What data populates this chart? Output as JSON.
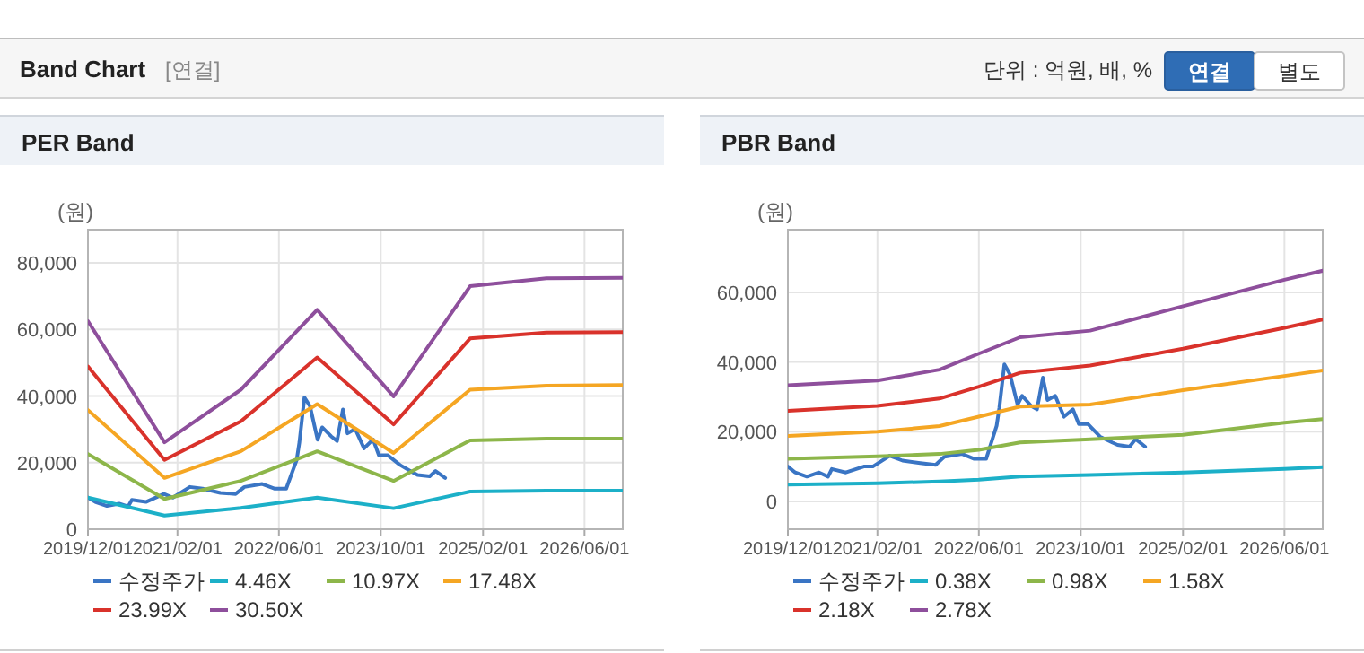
{
  "chart_data": [
    {
      "type": "other",
      "title": "Band Chart",
      "subtitle": "[연결]",
      "annotations": [
        "단위 : 억원, 배, %",
        "연결",
        "별도"
      ]
    },
    {
      "type": "line",
      "title": "PER Band",
      "ylabel": "(원)",
      "xlim": [
        "2019-12-01",
        "2026-12-01"
      ],
      "ylim": [
        0,
        90000
      ],
      "xticks": [
        {
          "value": "2019-12-01",
          "label": "2019/12/01"
        },
        {
          "value": "2021-02-01",
          "label": "2021/02/01"
        },
        {
          "value": "2022-06-01",
          "label": "2022/06/01"
        },
        {
          "value": "2023-10-01",
          "label": "2023/10/01"
        },
        {
          "value": "2025-02-01",
          "label": "2025/02/01"
        },
        {
          "value": "2026-06-01",
          "label": "2026/06/01"
        }
      ],
      "yticks": [
        0,
        {
          "value": 20000,
          "label": "20,000"
        },
        {
          "value": 40000,
          "label": "40,000"
        },
        {
          "value": 60000,
          "label": "60,000"
        },
        {
          "value": 80000,
          "label": "80,000"
        }
      ],
      "grid": true,
      "legend": "bottom",
      "line_style": "solid",
      "series": [
        {
          "name": "수정주가",
          "color": "#3a75c4",
          "x": [
            "2019-12-01",
            "2020-01-05",
            "2020-03-01",
            "2020-04-28",
            "2020-06-10",
            "2020-06-28",
            "2020-09-03",
            "2020-11-28",
            "2021-01-10",
            "2021-04-01",
            "2021-06-01",
            "2021-08-25",
            "2021-11-06",
            "2021-12-18",
            "2022-03-13",
            "2022-05-10",
            "2022-07-06",
            "2022-08-25",
            "2022-09-07",
            "2022-10-01",
            "2022-10-28",
            "2022-12-03",
            "2022-12-25",
            "2023-02-06",
            "2023-03-06",
            "2023-04-03",
            "2023-04-25",
            "2023-06-01",
            "2023-07-13",
            "2023-08-25",
            "2023-09-22",
            "2023-11-04",
            "2024-01-01",
            "2024-02-28",
            "2024-03-25",
            "2024-05-22",
            "2024-06-19",
            "2024-08-04"
          ],
          "values": [
            9500,
            8200,
            7000,
            7700,
            6800,
            8800,
            8200,
            10600,
            9500,
            12700,
            12200,
            10900,
            10600,
            12700,
            13600,
            12200,
            12200,
            20800,
            26100,
            39600,
            36900,
            26900,
            30600,
            27900,
            26500,
            36000,
            28800,
            30100,
            24300,
            27000,
            22200,
            22200,
            19300,
            17200,
            16300,
            15900,
            17500,
            15400
          ]
        },
        {
          "name": "4.46X",
          "color": "#1cb0c8",
          "x": [
            "2019-12-01",
            "2020-12-01",
            "2021-12-01",
            "2022-12-01",
            "2023-12-01",
            "2024-12-01",
            "2025-12-01",
            "2026-12-01"
          ],
          "values": [
            9500,
            4100,
            6400,
            9500,
            6300,
            11300,
            11600,
            11600
          ]
        },
        {
          "name": "10.97X",
          "color": "#8db64a",
          "x": [
            "2019-12-01",
            "2020-12-01",
            "2021-12-01",
            "2022-12-01",
            "2023-12-01",
            "2024-12-01",
            "2025-12-01",
            "2026-12-01"
          ],
          "values": [
            22600,
            9100,
            14500,
            23400,
            14500,
            26700,
            27200,
            27200
          ]
        },
        {
          "name": "17.48X",
          "color": "#f5a623",
          "x": [
            "2019-12-01",
            "2020-12-01",
            "2021-12-01",
            "2022-12-01",
            "2023-12-01",
            "2024-12-01",
            "2025-12-01",
            "2026-12-01"
          ],
          "values": [
            35800,
            15400,
            23400,
            37600,
            22900,
            41900,
            43100,
            43300
          ]
        },
        {
          "name": "23.99X",
          "color": "#d9322b",
          "x": [
            "2019-12-01",
            "2020-12-01",
            "2021-12-01",
            "2022-12-01",
            "2023-12-01",
            "2024-12-01",
            "2025-12-01",
            "2026-12-01"
          ],
          "values": [
            48900,
            20800,
            32400,
            51600,
            31500,
            57300,
            59100,
            59200
          ]
        },
        {
          "name": "30.50X",
          "color": "#8e4f9c",
          "x": [
            "2019-12-01",
            "2020-12-01",
            "2021-12-01",
            "2022-12-01",
            "2023-12-01",
            "2024-12-01",
            "2025-12-01",
            "2026-12-01"
          ],
          "values": [
            62500,
            26100,
            41900,
            65900,
            39900,
            73000,
            75400,
            75500
          ]
        }
      ]
    },
    {
      "type": "line",
      "title": "PBR Band",
      "ylabel": "(원)",
      "xlim": [
        "2019-12-01",
        "2026-12-01"
      ],
      "ylim": [
        -8000,
        78000
      ],
      "xticks": [
        {
          "value": "2019-12-01",
          "label": "2019/12/01"
        },
        {
          "value": "2021-02-01",
          "label": "2021/02/01"
        },
        {
          "value": "2022-06-01",
          "label": "2022/06/01"
        },
        {
          "value": "2023-10-01",
          "label": "2023/10/01"
        },
        {
          "value": "2025-02-01",
          "label": "2025/02/01"
        },
        {
          "value": "2026-06-01",
          "label": "2026/06/01"
        }
      ],
      "yticks": [
        0,
        {
          "value": 20000,
          "label": "20,000"
        },
        {
          "value": 40000,
          "label": "40,000"
        },
        {
          "value": 60000,
          "label": "60,000"
        }
      ],
      "grid": true,
      "legend": "bottom",
      "line_style": "solid",
      "series": [
        {
          "name": "수정주가",
          "color": "#3a75c4",
          "x": [
            "2019-12-01",
            "2020-01-05",
            "2020-03-01",
            "2020-04-28",
            "2020-06-10",
            "2020-06-28",
            "2020-09-03",
            "2020-11-28",
            "2021-01-10",
            "2021-04-01",
            "2021-06-01",
            "2021-08-25",
            "2021-11-06",
            "2021-12-18",
            "2022-03-13",
            "2022-05-10",
            "2022-07-06",
            "2022-08-25",
            "2022-09-07",
            "2022-10-01",
            "2022-10-28",
            "2022-12-03",
            "2022-12-25",
            "2023-02-06",
            "2023-03-06",
            "2023-04-03",
            "2023-04-25",
            "2023-06-01",
            "2023-07-13",
            "2023-08-25",
            "2023-09-22",
            "2023-11-04",
            "2024-01-01",
            "2024-02-28",
            "2024-03-25",
            "2024-05-22",
            "2024-06-19",
            "2024-08-04"
          ],
          "values": [
            10000,
            8300,
            7100,
            8300,
            7100,
            9300,
            8300,
            10000,
            10000,
            13100,
            11700,
            11000,
            10500,
            12800,
            13600,
            12200,
            12200,
            21700,
            26900,
            39300,
            36400,
            27800,
            30300,
            27400,
            26400,
            35500,
            29100,
            30300,
            24300,
            26400,
            22200,
            22200,
            18600,
            16900,
            16200,
            15700,
            17900,
            15700
          ]
        },
        {
          "name": "0.38X",
          "color": "#1cb0c8",
          "x": [
            "2019-12-01",
            "2021-02-01",
            "2021-11-25",
            "2022-06-01",
            "2022-12-15",
            "2023-11-15",
            "2025-02-01",
            "2026-06-01",
            "2026-12-01"
          ],
          "values": [
            4800,
            5200,
            5700,
            6200,
            7100,
            7600,
            8300,
            9300,
            9800
          ]
        },
        {
          "name": "0.98X",
          "color": "#8db64a",
          "x": [
            "2019-12-01",
            "2021-02-01",
            "2021-11-25",
            "2022-06-01",
            "2022-12-15",
            "2023-11-15",
            "2025-02-01",
            "2026-06-01",
            "2026-12-01"
          ],
          "values": [
            12200,
            12900,
            13600,
            14800,
            16900,
            17800,
            19100,
            22600,
            23600
          ]
        },
        {
          "name": "1.58X",
          "color": "#f5a623",
          "x": [
            "2019-12-01",
            "2021-02-01",
            "2021-11-25",
            "2022-06-01",
            "2022-12-15",
            "2023-11-15",
            "2025-02-01",
            "2026-06-01",
            "2026-12-01"
          ],
          "values": [
            18800,
            20000,
            21600,
            24300,
            27200,
            27800,
            31900,
            36000,
            37600
          ]
        },
        {
          "name": "2.18X",
          "color": "#d9322b",
          "x": [
            "2019-12-01",
            "2021-02-01",
            "2021-11-25",
            "2022-06-01",
            "2022-12-15",
            "2023-11-15",
            "2025-02-01",
            "2026-06-01",
            "2026-12-01"
          ],
          "values": [
            26000,
            27400,
            29500,
            32900,
            36900,
            39000,
            43800,
            49800,
            52200
          ]
        },
        {
          "name": "2.78X",
          "color": "#8e4f9c",
          "x": [
            "2019-12-01",
            "2021-02-01",
            "2021-11-25",
            "2022-06-01",
            "2022-12-15",
            "2023-11-15",
            "2025-02-01",
            "2026-06-01",
            "2026-12-01"
          ],
          "values": [
            33300,
            34700,
            37800,
            42400,
            47100,
            49000,
            56000,
            63600,
            66200
          ]
        }
      ]
    }
  ]
}
